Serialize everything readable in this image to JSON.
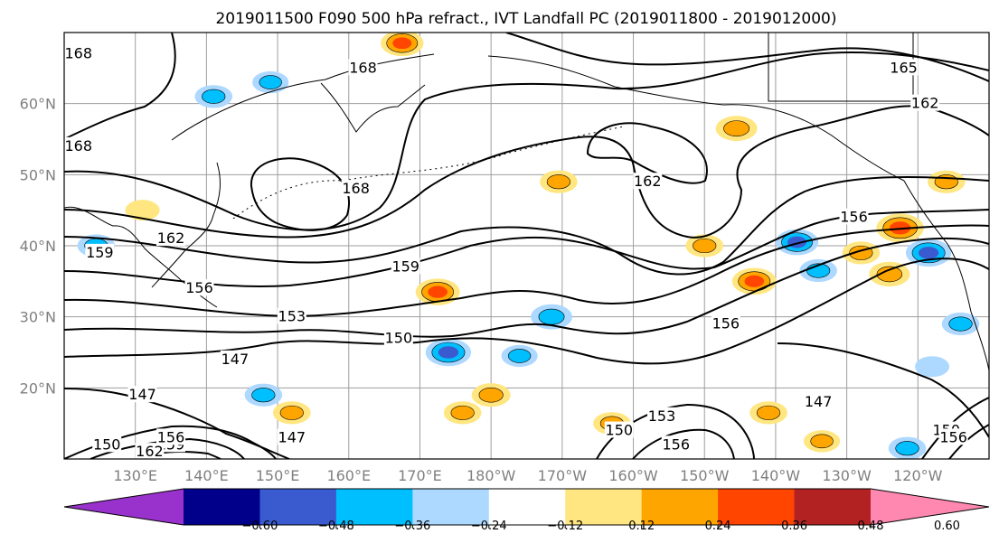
{
  "title": "2019011500 F090 500 hPa refract., IVT Landfall PC (2019011800 - 2019012000)",
  "map": {
    "lon_range": [
      120,
      250
    ],
    "lat_range": [
      10,
      70
    ],
    "lon_ticks": [
      130,
      140,
      150,
      160,
      170,
      180,
      190,
      200,
      210,
      220,
      230,
      240
    ],
    "lon_tick_labels": [
      "130°E",
      "140°E",
      "150°E",
      "160°E",
      "170°E",
      "180°W",
      "170°W",
      "160°W",
      "150°W",
      "140°W",
      "130°W",
      "120°W"
    ],
    "lat_ticks": [
      20,
      30,
      40,
      50,
      60
    ],
    "lat_tick_labels": [
      "20°N",
      "30°N",
      "40°N",
      "50°N",
      "60°N"
    ],
    "gridlines": true,
    "grid_color": "#9e9e9e",
    "contour_levels_shown": [
      "168",
      "165",
      "162",
      "159",
      "156",
      "153",
      "150",
      "147"
    ],
    "contour_labels": [
      {
        "text": "168",
        "lon": 122,
        "lat": 67
      },
      {
        "text": "168",
        "lon": 122,
        "lat": 54
      },
      {
        "text": "168",
        "lon": 161,
        "lat": 48
      },
      {
        "text": "168",
        "lon": 162,
        "lat": 65
      },
      {
        "text": "165",
        "lon": 238,
        "lat": 65
      },
      {
        "text": "162",
        "lon": 241,
        "lat": 60
      },
      {
        "text": "162",
        "lon": 202,
        "lat": 49
      },
      {
        "text": "162",
        "lon": 135,
        "lat": 41
      },
      {
        "text": "159",
        "lon": 125,
        "lat": 39
      },
      {
        "text": "159",
        "lon": 168,
        "lat": 37
      },
      {
        "text": "156",
        "lon": 139,
        "lat": 34
      },
      {
        "text": "156",
        "lon": 231,
        "lat": 44
      },
      {
        "text": "156",
        "lon": 213,
        "lat": 29
      },
      {
        "text": "153",
        "lon": 152,
        "lat": 30
      },
      {
        "text": "150",
        "lon": 167,
        "lat": 27
      },
      {
        "text": "147",
        "lon": 144,
        "lat": 24
      },
      {
        "text": "147",
        "lon": 131,
        "lat": 19
      },
      {
        "text": "147",
        "lon": 226,
        "lat": 18
      },
      {
        "text": "147",
        "lon": 152,
        "lat": 13
      },
      {
        "text": "150",
        "lon": 198,
        "lat": 14
      },
      {
        "text": "153",
        "lon": 204,
        "lat": 16
      },
      {
        "text": "156",
        "lon": 206,
        "lat": 12
      },
      {
        "text": "150",
        "lon": 244,
        "lat": 14
      },
      {
        "text": "156",
        "lon": 245,
        "lat": 13
      },
      {
        "text": "159",
        "lon": 135,
        "lat": 12
      },
      {
        "text": "156",
        "lon": 135,
        "lat": 13
      },
      {
        "text": "162",
        "lon": 132,
        "lat": 11
      },
      {
        "text": "150",
        "lon": 126,
        "lat": 12
      }
    ]
  },
  "colorbar": {
    "colors": [
      "#9932cc",
      "#00008b",
      "#3a5bd0",
      "#00bfff",
      "#add8ff",
      "#ffffff",
      "#ffe680",
      "#ffa500",
      "#ff4500",
      "#b22222",
      "#ff88b0"
    ],
    "tick_labels": [
      "−0.60",
      "−0.48",
      "−0.36",
      "−0.24",
      "−0.12",
      "0.12",
      "0.24",
      "0.36",
      "0.48",
      "0.60"
    ],
    "extend": "both"
  },
  "chart_data": {
    "type": "heatmap",
    "title": "2019011500 F090 500 hPa refract., IVT Landfall PC (2019011800 - 2019012000)",
    "xlabel": "",
    "ylabel": "",
    "xlim": [
      120,
      250
    ],
    "ylim": [
      10,
      70
    ],
    "grid": true,
    "color_levels": [
      -0.6,
      -0.48,
      -0.36,
      -0.24,
      -0.12,
      0.12,
      0.24,
      0.36,
      0.48,
      0.6
    ],
    "anomaly_patches": [
      {
        "lon": 172.5,
        "lat": 33.5,
        "value": 0.4
      },
      {
        "lon": 237.5,
        "lat": 42.5,
        "value": 0.45
      },
      {
        "lon": 241.5,
        "lat": 39.0,
        "value": -0.42
      },
      {
        "lon": 167.5,
        "lat": 68.5,
        "value": 0.38
      },
      {
        "lon": 214.5,
        "lat": 56.5,
        "value": 0.36
      },
      {
        "lon": 141.0,
        "lat": 61.0,
        "value": -0.3
      },
      {
        "lon": 149.0,
        "lat": 63.0,
        "value": -0.28
      },
      {
        "lon": 174.0,
        "lat": 25.0,
        "value": -0.42
      },
      {
        "lon": 188.5,
        "lat": 30.0,
        "value": -0.36
      },
      {
        "lon": 223.0,
        "lat": 40.5,
        "value": -0.38
      },
      {
        "lon": 210.0,
        "lat": 40.0,
        "value": 0.3
      },
      {
        "lon": 226.0,
        "lat": 36.5,
        "value": -0.3
      },
      {
        "lon": 217.0,
        "lat": 35.0,
        "value": 0.4
      },
      {
        "lon": 236.0,
        "lat": 36.0,
        "value": 0.35
      },
      {
        "lon": 232.0,
        "lat": 39.0,
        "value": 0.3
      },
      {
        "lon": 148.0,
        "lat": 19.0,
        "value": -0.3
      },
      {
        "lon": 152.0,
        "lat": 16.5,
        "value": 0.3
      },
      {
        "lon": 176.0,
        "lat": 16.5,
        "value": 0.3
      },
      {
        "lon": 180.0,
        "lat": 19.0,
        "value": 0.32
      },
      {
        "lon": 197.0,
        "lat": 15.0,
        "value": 0.3
      },
      {
        "lon": 219.0,
        "lat": 16.5,
        "value": 0.3
      },
      {
        "lon": 246.0,
        "lat": 29.0,
        "value": -0.3
      },
      {
        "lon": 242.0,
        "lat": 23.0,
        "value": -0.25
      },
      {
        "lon": 189.5,
        "lat": 49.0,
        "value": 0.3
      },
      {
        "lon": 124.5,
        "lat": 40.0,
        "value": -0.3
      },
      {
        "lon": 131.0,
        "lat": 45.0,
        "value": 0.25
      },
      {
        "lon": 226.5,
        "lat": 12.5,
        "value": 0.28
      },
      {
        "lon": 238.5,
        "lat": 11.5,
        "value": -0.3
      },
      {
        "lon": 184.0,
        "lat": 24.5,
        "value": -0.28
      },
      {
        "lon": 244.0,
        "lat": 49.0,
        "value": 0.3
      }
    ],
    "contours_dam": [
      147,
      150,
      153,
      156,
      159,
      162,
      165,
      168
    ]
  }
}
